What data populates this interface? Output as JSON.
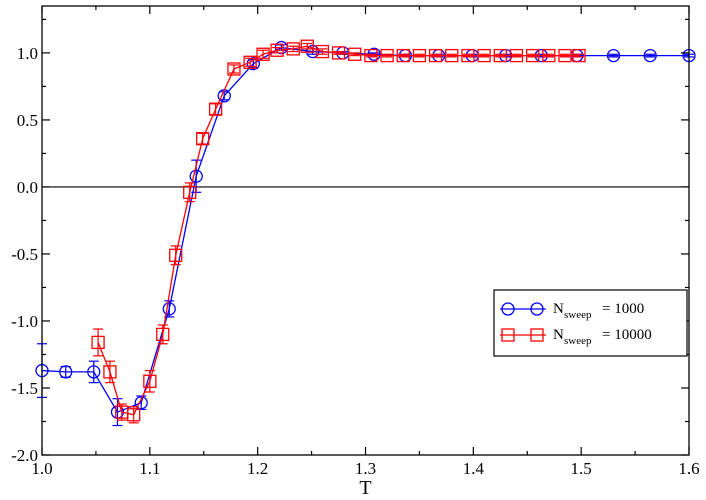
{
  "chart_data": {
    "type": "line",
    "xlabel": "T",
    "ylabel": "",
    "xlim": [
      1.0,
      1.6
    ],
    "ylim": [
      -2.0,
      1.35
    ],
    "x_ticks": [
      "1.0",
      "1.1",
      "1.2",
      "1.3",
      "1.4",
      "1.5",
      "1.6"
    ],
    "y_ticks": [
      "-2.0",
      "-1.5",
      "-1.0",
      "-0.5",
      "0.0",
      "0.5",
      "1.0"
    ],
    "x_tick_values": [
      1.0,
      1.1,
      1.2,
      1.3,
      1.4,
      1.5,
      1.6
    ],
    "y_tick_values": [
      -2.0,
      -1.5,
      -1.0,
      -0.5,
      0.0,
      0.5,
      1.0
    ],
    "reference_line_y": 0.0,
    "legend_position": "lower-right",
    "series": [
      {
        "name": "1000",
        "legend_main": "N",
        "legend_sub": "sweep",
        "legend_value": "= 1000",
        "color": "#0000ff",
        "marker": "circle",
        "points": [
          {
            "x": 1.0,
            "y": -1.37,
            "err": 0.2
          },
          {
            "x": 1.022,
            "y": -1.38,
            "err": 0.04
          },
          {
            "x": 1.048,
            "y": -1.38,
            "err": 0.08
          },
          {
            "x": 1.07,
            "y": -1.68,
            "err": 0.1
          },
          {
            "x": 1.092,
            "y": -1.61,
            "err": 0.05
          },
          {
            "x": 1.118,
            "y": -0.91,
            "err": 0.06
          },
          {
            "x": 1.143,
            "y": 0.08,
            "err": 0.12
          },
          {
            "x": 1.169,
            "y": 0.68,
            "err": 0.03
          },
          {
            "x": 1.196,
            "y": 0.92,
            "err": 0.03
          },
          {
            "x": 1.222,
            "y": 1.04,
            "err": 0.02
          },
          {
            "x": 1.251,
            "y": 1.01,
            "err": 0.02
          },
          {
            "x": 1.279,
            "y": 1.0,
            "err": 0.01
          },
          {
            "x": 1.308,
            "y": 0.99,
            "err": 0.01
          },
          {
            "x": 1.337,
            "y": 0.98,
            "err": 0.01
          },
          {
            "x": 1.368,
            "y": 0.98,
            "err": 0.01
          },
          {
            "x": 1.399,
            "y": 0.98,
            "err": 0.01
          },
          {
            "x": 1.43,
            "y": 0.98,
            "err": 0.01
          },
          {
            "x": 1.463,
            "y": 0.98,
            "err": 0.01
          },
          {
            "x": 1.496,
            "y": 0.98,
            "err": 0.01
          },
          {
            "x": 1.53,
            "y": 0.98,
            "err": 0.01
          },
          {
            "x": 1.564,
            "y": 0.98,
            "err": 0.01
          },
          {
            "x": 1.6,
            "y": 0.98,
            "err": 0.01
          }
        ]
      },
      {
        "name": "10000",
        "legend_main": "N",
        "legend_sub": "sweep",
        "legend_value": "= 10000",
        "color": "#ff0000",
        "marker": "square",
        "points": [
          {
            "x": 1.052,
            "y": -1.16,
            "err": 0.1
          },
          {
            "x": 1.063,
            "y": -1.38,
            "err": 0.08
          },
          {
            "x": 1.074,
            "y": -1.68,
            "err": 0.06
          },
          {
            "x": 1.085,
            "y": -1.7,
            "err": 0.06
          },
          {
            "x": 1.1,
            "y": -1.45,
            "err": 0.08
          },
          {
            "x": 1.112,
            "y": -1.1,
            "err": 0.07
          },
          {
            "x": 1.124,
            "y": -0.51,
            "err": 0.07
          },
          {
            "x": 1.137,
            "y": -0.04,
            "err": 0.07
          },
          {
            "x": 1.149,
            "y": 0.36,
            "err": 0.04
          },
          {
            "x": 1.161,
            "y": 0.58,
            "err": 0.04
          },
          {
            "x": 1.178,
            "y": 0.88,
            "err": 0.03
          },
          {
            "x": 1.193,
            "y": 0.93,
            "err": 0.03
          },
          {
            "x": 1.205,
            "y": 0.99,
            "err": 0.03
          },
          {
            "x": 1.218,
            "y": 1.02,
            "err": 0.02
          },
          {
            "x": 1.233,
            "y": 1.03,
            "err": 0.02
          },
          {
            "x": 1.246,
            "y": 1.05,
            "err": 0.02
          },
          {
            "x": 1.26,
            "y": 1.01,
            "err": 0.02
          },
          {
            "x": 1.275,
            "y": 1.0,
            "err": 0.01
          },
          {
            "x": 1.29,
            "y": 0.99,
            "err": 0.01
          },
          {
            "x": 1.305,
            "y": 0.98,
            "err": 0.01
          },
          {
            "x": 1.32,
            "y": 0.98,
            "err": 0.01
          },
          {
            "x": 1.335,
            "y": 0.98,
            "err": 0.01
          },
          {
            "x": 1.35,
            "y": 0.98,
            "err": 0.01
          },
          {
            "x": 1.365,
            "y": 0.98,
            "err": 0.01
          },
          {
            "x": 1.38,
            "y": 0.98,
            "err": 0.01
          },
          {
            "x": 1.395,
            "y": 0.98,
            "err": 0.01
          },
          {
            "x": 1.41,
            "y": 0.98,
            "err": 0.01
          },
          {
            "x": 1.425,
            "y": 0.98,
            "err": 0.01
          },
          {
            "x": 1.44,
            "y": 0.98,
            "err": 0.01
          },
          {
            "x": 1.455,
            "y": 0.98,
            "err": 0.01
          },
          {
            "x": 1.47,
            "y": 0.98,
            "err": 0.01
          },
          {
            "x": 1.485,
            "y": 0.98,
            "err": 0.01
          },
          {
            "x": 1.498,
            "y": 0.98,
            "err": 0.01
          }
        ]
      }
    ]
  }
}
